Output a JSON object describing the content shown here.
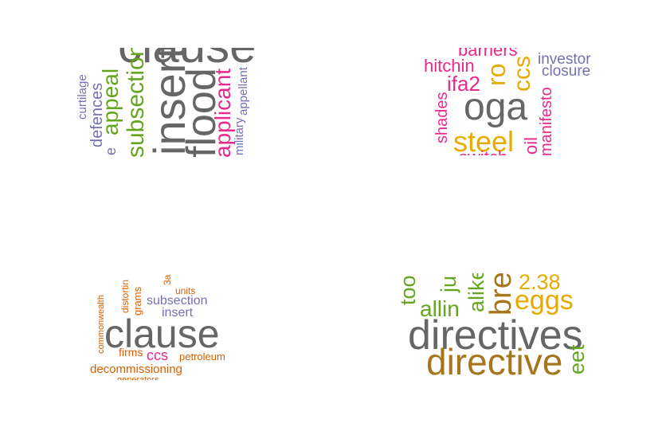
{
  "chart_data": [
    {
      "type": "wordcloud",
      "words": [
        {
          "text": "clause",
          "color": "#666666"
        },
        {
          "text": "insert",
          "color": "#666666"
        },
        {
          "text": "flood",
          "color": "#666666"
        },
        {
          "text": "subsection",
          "color": "#66a61e"
        },
        {
          "text": "appeal",
          "color": "#66a61e"
        },
        {
          "text": "applicant",
          "color": "#e7298a"
        },
        {
          "text": "defences",
          "color": "#7570b3"
        },
        {
          "text": "curtilage",
          "color": "#7570b3"
        },
        {
          "text": "appellant",
          "color": "#7570b3"
        },
        {
          "text": "military",
          "color": "#7570b3"
        },
        {
          "text": "e",
          "color": "#7570b3"
        }
      ]
    },
    {
      "type": "wordcloud",
      "words": [
        {
          "text": "oga",
          "color": "#666666"
        },
        {
          "text": "steel",
          "color": "#e6ab02"
        },
        {
          "text": "ro",
          "color": "#e6ab02"
        },
        {
          "text": "ccs",
          "color": "#e6ab02"
        },
        {
          "text": "ifa2",
          "color": "#e7298a"
        },
        {
          "text": "hitchin",
          "color": "#e7298a"
        },
        {
          "text": "shades",
          "color": "#e7298a"
        },
        {
          "text": "manifesto",
          "color": "#e7298a"
        },
        {
          "text": "oil",
          "color": "#e7298a"
        },
        {
          "text": "switch",
          "color": "#e7298a"
        },
        {
          "text": "barriers",
          "color": "#e7298a"
        },
        {
          "text": "investor",
          "color": "#7570b3"
        },
        {
          "text": "closure",
          "color": "#7570b3"
        }
      ]
    },
    {
      "type": "wordcloud",
      "words": [
        {
          "text": "clause",
          "color": "#666666"
        },
        {
          "text": "subsection",
          "color": "#7570b3"
        },
        {
          "text": "insert",
          "color": "#7570b3"
        },
        {
          "text": "ccs",
          "color": "#e7298a"
        },
        {
          "text": "decommissioning",
          "color": "#d95f02"
        },
        {
          "text": "firms",
          "color": "#d95f02"
        },
        {
          "text": "petroleum",
          "color": "#d95f02"
        },
        {
          "text": "units",
          "color": "#d95f02"
        },
        {
          "text": "grams",
          "color": "#d95f02"
        },
        {
          "text": "distortin",
          "color": "#d95f02"
        },
        {
          "text": "3a",
          "color": "#d95f02"
        },
        {
          "text": "commonwealth",
          "color": "#d95f02"
        },
        {
          "text": "generators",
          "color": "#d95f02"
        }
      ]
    },
    {
      "type": "wordcloud",
      "words": [
        {
          "text": "directives",
          "color": "#666666"
        },
        {
          "text": "directive",
          "color": "#a6761d"
        },
        {
          "text": "bre",
          "color": "#a6761d"
        },
        {
          "text": "eggs",
          "color": "#e6ab02"
        },
        {
          "text": "2.38",
          "color": "#e6ab02"
        },
        {
          "text": "allin",
          "color": "#66a61e"
        },
        {
          "text": "alike",
          "color": "#66a61e"
        },
        {
          "text": "ju",
          "color": "#66a61e"
        },
        {
          "text": "too",
          "color": "#66a61e"
        },
        {
          "text": "eet",
          "color": "#66a61e"
        }
      ]
    }
  ]
}
